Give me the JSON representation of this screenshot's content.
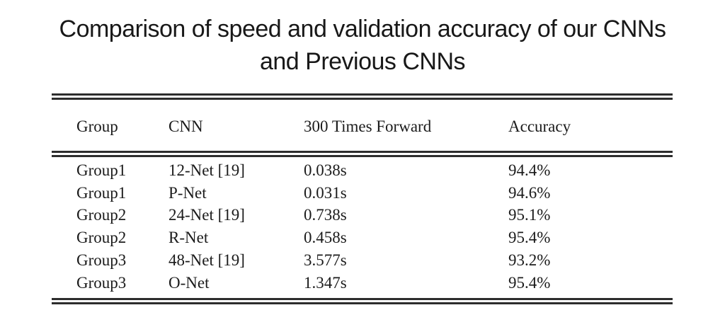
{
  "title": {
    "line1": "Comparison of speed and validation accuracy of our CNNs",
    "line2": "and Previous CNNs"
  },
  "chart_data": {
    "type": "table",
    "title": "Comparison of speed and validation accuracy of our CNNs and Previous CNNs",
    "columns": [
      "Group",
      "CNN",
      "300 Times Forward",
      "Accuracy"
    ],
    "rows": [
      [
        "Group1",
        "12-Net [19]",
        "0.038s",
        "94.4%"
      ],
      [
        "Group1",
        "P-Net",
        "0.031s",
        "94.6%"
      ],
      [
        "Group2",
        "24-Net [19]",
        "0.738s",
        "95.1%"
      ],
      [
        "Group2",
        "R-Net",
        "0.458s",
        "95.4%"
      ],
      [
        "Group3",
        "48-Net [19]",
        "3.577s",
        "93.2%"
      ],
      [
        "Group3",
        "O-Net",
        "1.347s",
        "95.4%"
      ]
    ]
  },
  "colors": {
    "background": "#ffffff",
    "text": "#1b1b1b",
    "title_text": "#181818",
    "rule": "#2d2d2d"
  }
}
